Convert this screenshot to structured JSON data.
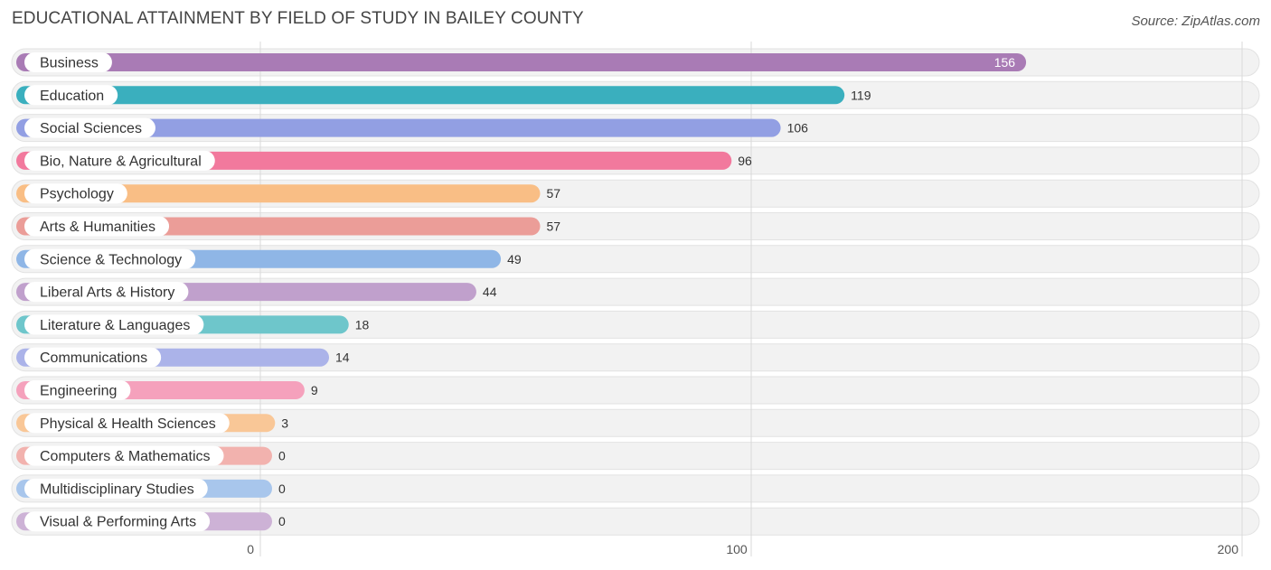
{
  "header": {
    "title": "EDUCATIONAL ATTAINMENT BY FIELD OF STUDY IN BAILEY COUNTY",
    "source": "Source: ZipAtlas.com"
  },
  "chart_data": {
    "type": "bar",
    "orientation": "horizontal",
    "title": "EDUCATIONAL ATTAINMENT BY FIELD OF STUDY IN BAILEY COUNTY",
    "xlabel": "",
    "ylabel": "",
    "xlim": [
      0,
      200
    ],
    "ticks": [
      {
        "value": 0,
        "label": "0"
      },
      {
        "value": 100,
        "label": "100"
      },
      {
        "value": 200,
        "label": "200"
      }
    ],
    "grid": true,
    "categories": [
      "Business",
      "Education",
      "Social Sciences",
      "Bio, Nature & Agricultural",
      "Psychology",
      "Arts & Humanities",
      "Science & Technology",
      "Liberal Arts & History",
      "Literature & Languages",
      "Communications",
      "Engineering",
      "Physical & Health Sciences",
      "Computers & Mathematics",
      "Multidisciplinary Studies",
      "Visual & Performing Arts"
    ],
    "values": [
      156,
      119,
      106,
      96,
      57,
      57,
      49,
      44,
      18,
      14,
      9,
      3,
      0,
      0,
      0
    ],
    "value_labels": [
      "156",
      "119",
      "106",
      "96",
      "57",
      "57",
      "49",
      "44",
      "18",
      "14",
      "9",
      "3",
      "0",
      "0",
      "0"
    ],
    "colors": [
      "#a97bb5",
      "#3aafbe",
      "#929fe3",
      "#f2799d",
      "#f9be85",
      "#eb9d98",
      "#8fb6e6",
      "#c0a0cc",
      "#6ec6cb",
      "#abb3e9",
      "#f5a1bc",
      "#f9c797",
      "#f2b2ae",
      "#a8c6ec",
      "#cdb2d6"
    ]
  }
}
